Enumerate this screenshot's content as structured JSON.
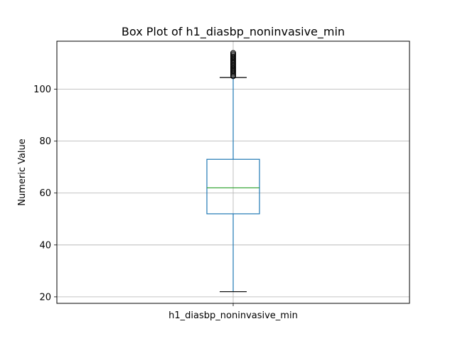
{
  "chart_data": {
    "type": "box",
    "title": "Box Plot of h1_diasbp_noninvasive_min",
    "xlabel": "",
    "ylabel": "Numeric Value",
    "categories": [
      "h1_diasbp_noninvasive_min"
    ],
    "ylim": [
      17.5,
      118.5
    ],
    "yticks": [
      20,
      40,
      60,
      80,
      100
    ],
    "grid": true,
    "colors": {
      "box": "#1f77b4",
      "median": "#2ca02c",
      "whisker_cap": "#000000",
      "grid": "#b0b0b0",
      "flier": "#000000"
    },
    "series": [
      {
        "category": "h1_diasbp_noninvasive_min",
        "whisker_low": 22,
        "q1": 52,
        "median": 62,
        "q3": 73,
        "whisker_high": 104.5,
        "fliers": [
          105,
          105.5,
          106,
          106.5,
          107,
          107.5,
          108,
          108.5,
          109,
          109.5,
          110,
          110.5,
          111,
          111.5,
          112,
          112.5,
          113,
          113.5,
          114
        ]
      }
    ]
  }
}
